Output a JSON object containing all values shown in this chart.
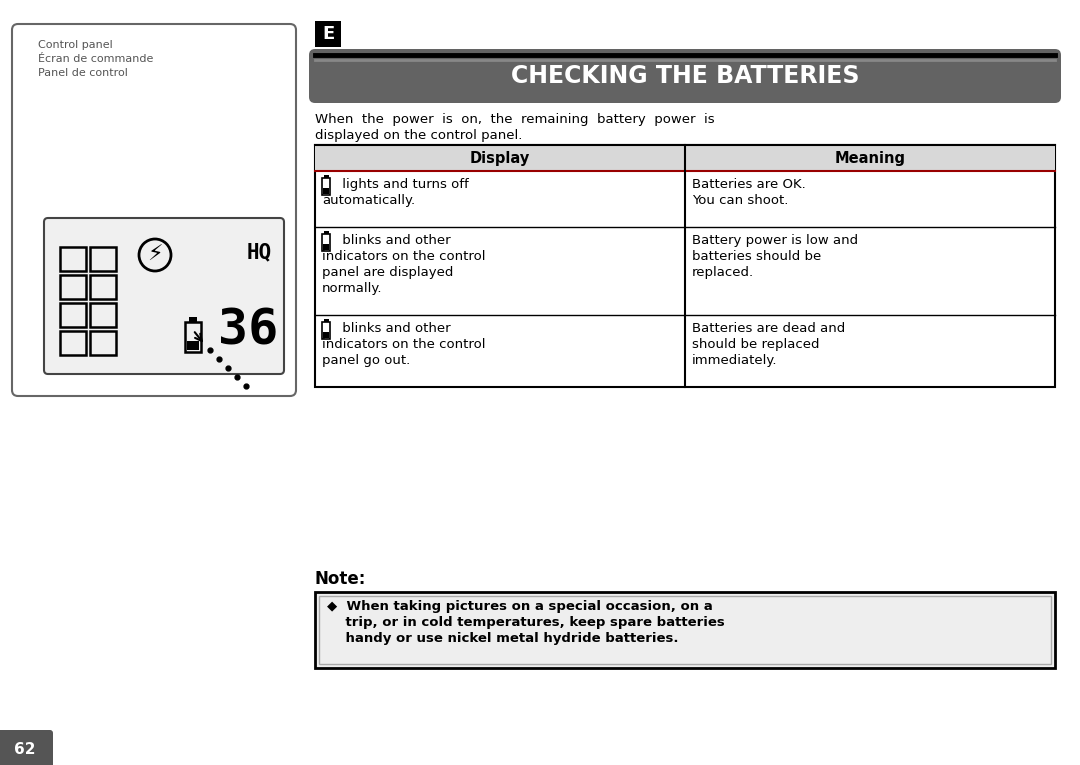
{
  "page_bg": "#ffffff",
  "page_num": "62",
  "section_letter": "E",
  "section_title": "CHECKING THE BATTERIES",
  "section_title_bg": "#636363",
  "section_title_color": "#ffffff",
  "intro_line1": "When  the  power  is  on,  the  remaining  battery  power  is",
  "intro_line2": "displayed on the control panel.",
  "table_header": [
    "Display",
    "Meaning"
  ],
  "row1_display1": " lights and turns off",
  "row1_display2": "automatically.",
  "row1_meaning1": "Batteries are OK.",
  "row1_meaning2": "You can shoot.",
  "row2_display1": " blinks and other",
  "row2_display2": "indicators on the control",
  "row2_display3": "panel are displayed",
  "row2_display4": "normally.",
  "row2_meaning1": "Battery power is low and",
  "row2_meaning2": "batteries should be",
  "row2_meaning3": "replaced.",
  "row3_display1": " blinks and other",
  "row3_display2": "indicators on the control",
  "row3_display3": "panel go out.",
  "row3_meaning1": "Batteries are dead and",
  "row3_meaning2": "should be replaced",
  "row3_meaning3": "immediately.",
  "note_label": "Note:",
  "note_line1": "◆  When taking pictures on a special occasion, on a",
  "note_line2": "    trip, or in cold temperatures, keep spare batteries",
  "note_line3": "    handy or use nickel metal hydride batteries.",
  "cp_label1": "Control panel",
  "cp_label2": "Écran de commande",
  "cp_label3": "Panel de control"
}
